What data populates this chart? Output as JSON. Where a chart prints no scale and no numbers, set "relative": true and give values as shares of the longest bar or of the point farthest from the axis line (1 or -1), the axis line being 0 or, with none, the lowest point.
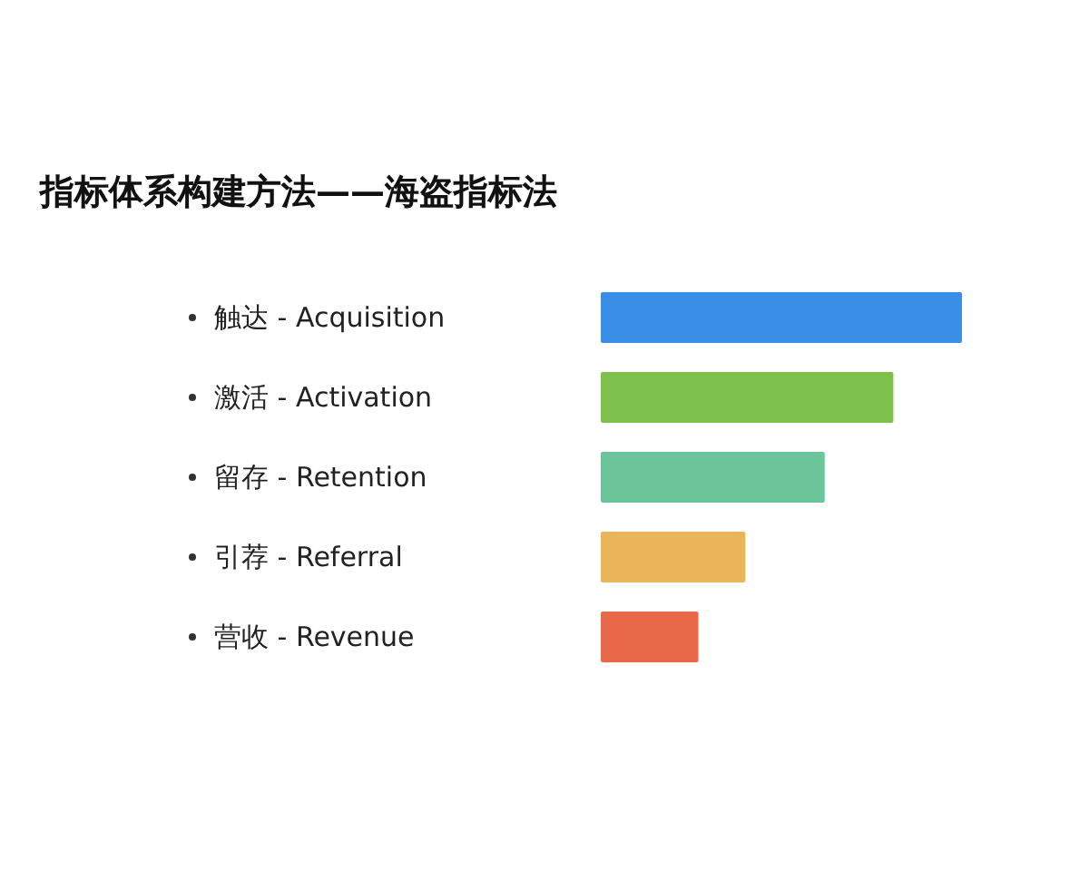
{
  "chart_data": {
    "type": "bar",
    "orientation": "horizontal",
    "relative": true,
    "title": "指标体系构建方法——海盗指标法",
    "categories": [
      "触达 - Acquisition",
      "激活 - Activation",
      "留存 - Retention",
      "引荐 - Referral",
      "营收 - Revenue"
    ],
    "values": [
      1,
      0.81,
      0.62,
      0.4,
      0.27
    ],
    "colors": [
      "#3a8ee6",
      "#7dc04b",
      "#6cc49b",
      "#eab55a",
      "#e8694a"
    ]
  }
}
